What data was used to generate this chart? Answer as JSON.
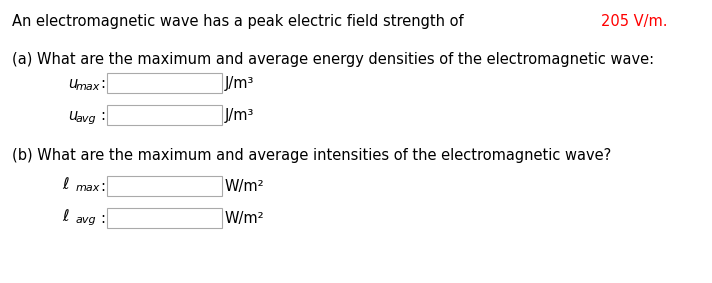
{
  "title_prefix": "An electromagnetic wave has a peak electric field strength of ",
  "title_value": "205 V/m.",
  "title_prefix_color": "#000000",
  "title_value_color": "#FF0000",
  "part_a_text": "(a) What are the maximum and average energy densities of the electromagnetic wave:",
  "part_b_text": "(b) What are the maximum and average intensities of the electromagnetic wave?",
  "unit_energy": "J/m³",
  "unit_intensity": "W/m²",
  "box_facecolor": "#ffffff",
  "box_edgecolor": "#aaaaaa",
  "background_color": "#ffffff",
  "text_color": "#000000",
  "font_size": 10.5,
  "row_label_font_size": 10.5,
  "sub_font_size": 8.0
}
